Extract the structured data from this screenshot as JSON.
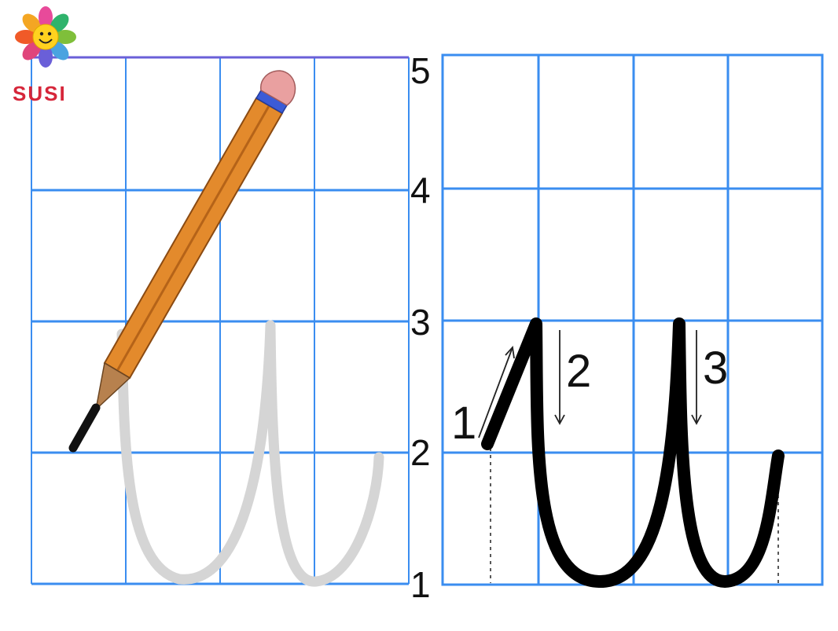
{
  "logo": {
    "text": "SUSI"
  },
  "line_numbers": [
    "5",
    "4",
    "3",
    "2",
    "1"
  ],
  "stroke_order_labels": [
    "1",
    "2",
    "3"
  ],
  "colors": {
    "grid": "#3a8df0",
    "top_line": "#6a5fd8",
    "ghost_letter": "#d5d5d5",
    "letter": "#000000"
  },
  "icons": {
    "logo": "sunflower-smiley-logo-icon",
    "pencil": "pencil-icon"
  }
}
